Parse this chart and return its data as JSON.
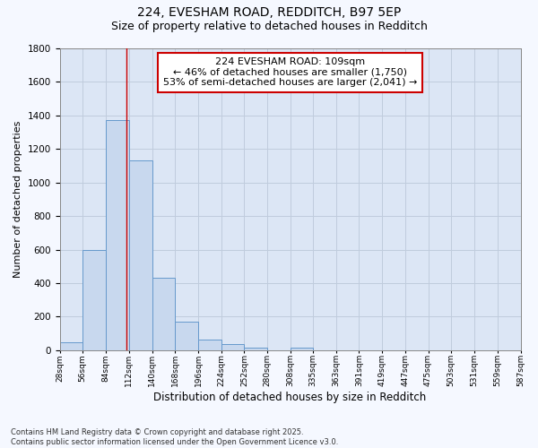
{
  "title1": "224, EVESHAM ROAD, REDDITCH, B97 5EP",
  "title2": "Size of property relative to detached houses in Redditch",
  "xlabel": "Distribution of detached houses by size in Redditch",
  "ylabel": "Number of detached properties",
  "bin_edges": [
    28,
    56,
    84,
    112,
    140,
    168,
    196,
    224,
    252,
    280,
    308,
    335,
    363,
    391,
    419,
    447,
    475,
    503,
    531,
    559,
    587
  ],
  "bar_heights": [
    50,
    600,
    1370,
    1130,
    430,
    170,
    65,
    35,
    15,
    0,
    15,
    0,
    0,
    0,
    0,
    0,
    0,
    0,
    0,
    0
  ],
  "bar_color": "#c8d8ee",
  "bar_edge_color": "#6699cc",
  "grid_color": "#c0ccdd",
  "bg_color": "#dce6f5",
  "fig_bg_color": "#f5f8ff",
  "vline_x": 109,
  "vline_color": "#cc0000",
  "annotation_text": "224 EVESHAM ROAD: 109sqm\n← 46% of detached houses are smaller (1,750)\n53% of semi-detached houses are larger (2,041) →",
  "annotation_box_color": "#cc0000",
  "ylim": [
    0,
    1800
  ],
  "yticks": [
    0,
    200,
    400,
    600,
    800,
    1000,
    1200,
    1400,
    1600,
    1800
  ],
  "footnote": "Contains HM Land Registry data © Crown copyright and database right 2025.\nContains public sector information licensed under the Open Government Licence v3.0.",
  "figsize": [
    6.0,
    5.0
  ],
  "dpi": 100
}
